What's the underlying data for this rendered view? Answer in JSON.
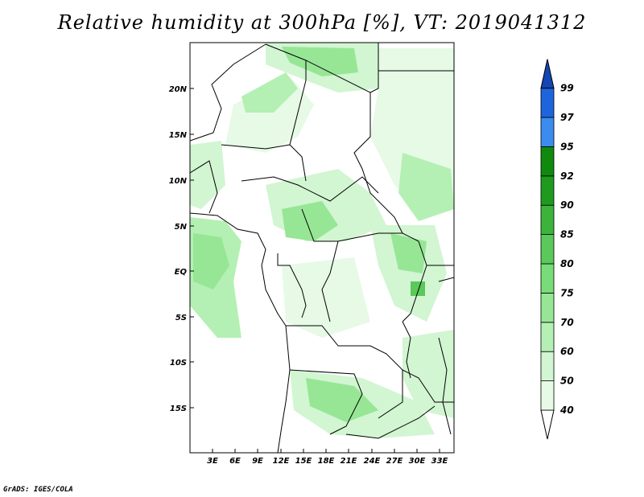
{
  "title": "Relative humidity at 300hPa [%], VT: 2019041312",
  "credit": "GrADS: IGES/COLA",
  "map": {
    "lon_ticks": [
      "3E",
      "6E",
      "9E",
      "12E",
      "15E",
      "18E",
      "21E",
      "24E",
      "27E",
      "30E",
      "33E"
    ],
    "lat_ticks": [
      "20N",
      "15N",
      "10N",
      "5N",
      "EQ",
      "5S",
      "10S",
      "15S"
    ]
  },
  "colorbar": {
    "levels": [
      "40",
      "50",
      "60",
      "70",
      "75",
      "80",
      "85",
      "90",
      "92",
      "95",
      "97",
      "99"
    ],
    "colors": [
      "#ffffff",
      "#e6fae6",
      "#d2f5d2",
      "#b4f0b4",
      "#96e696",
      "#78dc78",
      "#5ac85a",
      "#3cb43c",
      "#1e9b1e",
      "#0f8a0f",
      "#3c8cf0",
      "#1e64dc",
      "#1446b4"
    ]
  }
}
